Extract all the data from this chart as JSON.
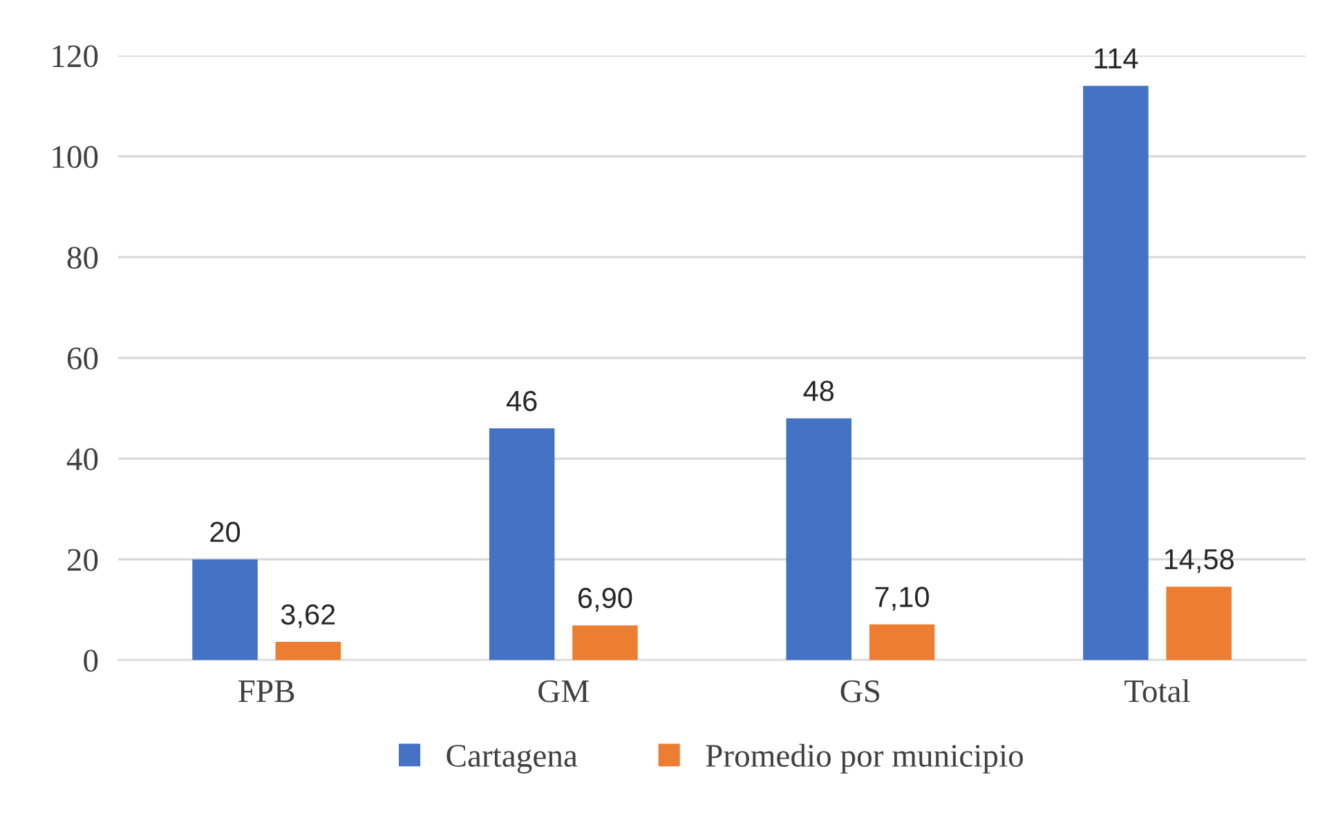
{
  "chart_data": {
    "type": "bar",
    "categories": [
      "FPB",
      "GM",
      "GS",
      "Total"
    ],
    "series": [
      {
        "name": "Cartagena",
        "color": "#4472c4",
        "values": [
          20,
          46,
          48,
          114
        ],
        "value_labels": [
          "20",
          "46",
          "48",
          "114"
        ]
      },
      {
        "name": "Promedio por municipio",
        "color": "#ed7d31",
        "values": [
          3.62,
          6.9,
          7.1,
          14.58
        ],
        "value_labels": [
          "3,62",
          "6,90",
          "7,10",
          "14,58"
        ]
      }
    ],
    "ylim": [
      0,
      120
    ],
    "yticks": [
      0,
      20,
      40,
      60,
      80,
      100,
      120
    ],
    "grid": "y",
    "legend": "bottom"
  }
}
